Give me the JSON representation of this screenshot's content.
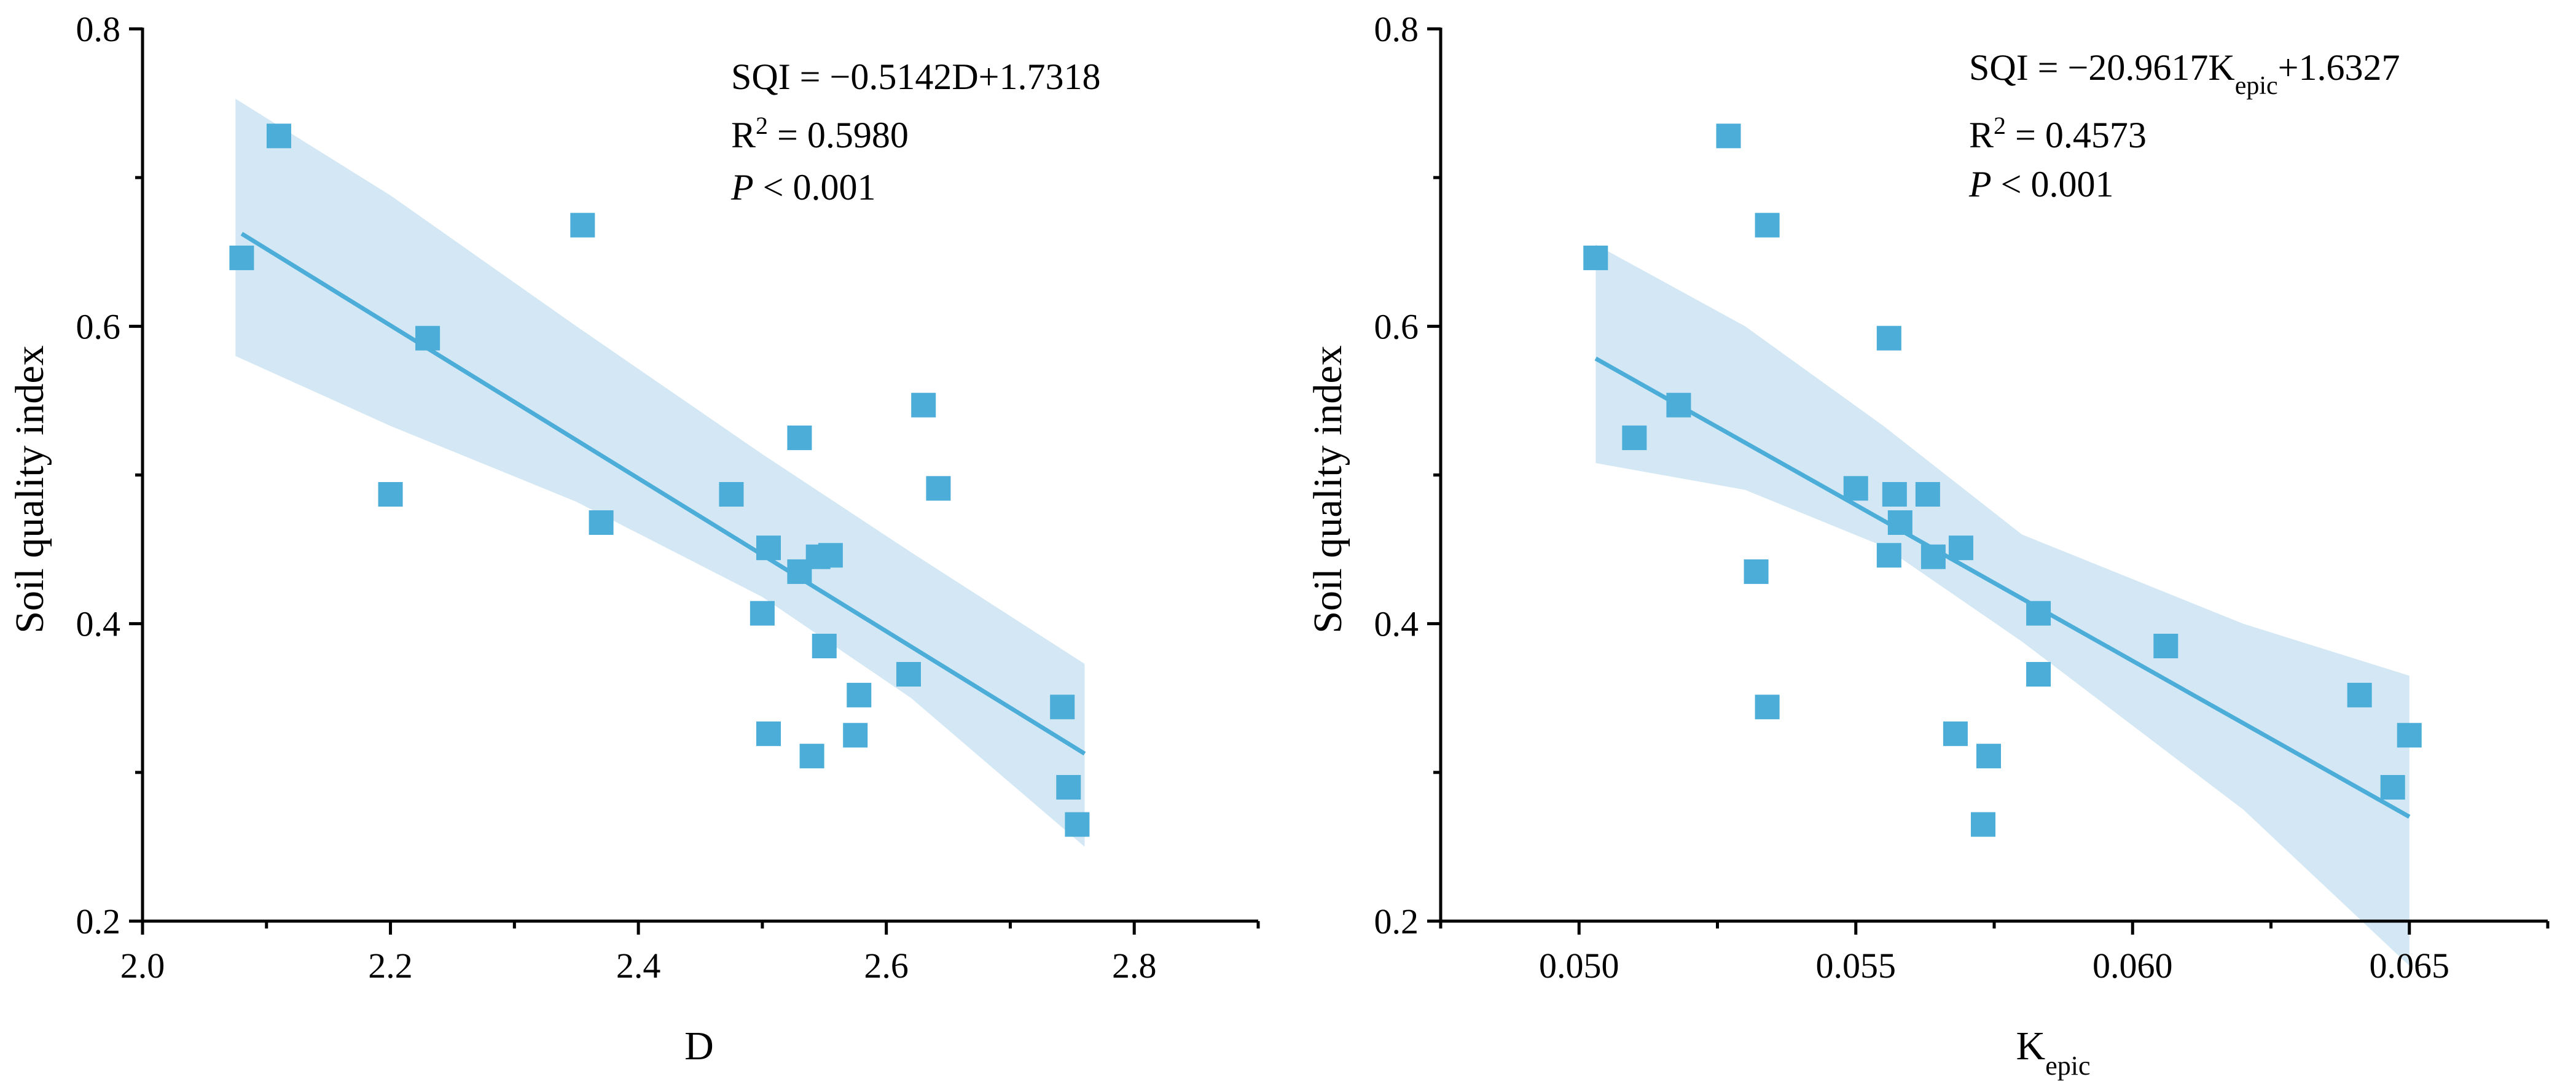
{
  "chart_data": [
    {
      "type": "scatter",
      "id": "left",
      "xlabel": "D",
      "ylabel": "Soil quality index",
      "xlim": [
        2.0,
        2.9
      ],
      "ylim": [
        0.2,
        0.8
      ],
      "xticks": [
        2.0,
        2.2,
        2.4,
        2.6,
        2.8
      ],
      "xtick_labels": [
        "2.0",
        "2.2",
        "2.4",
        "2.6",
        "2.8"
      ],
      "xminor": [
        2.1,
        2.3,
        2.5,
        2.7,
        2.9
      ],
      "yticks": [
        0.2,
        0.4,
        0.6,
        0.8
      ],
      "ytick_labels": [
        "0.2",
        "0.4",
        "0.6",
        "0.8"
      ],
      "yminor": [
        0.3,
        0.5,
        0.7
      ],
      "colors": {
        "marker": "#4badd8",
        "line": "#4badd8",
        "band": "#d3e8f4"
      },
      "annotation": {
        "equation": "SQI = −0.5142D+1.7318",
        "r2_prefix": "R",
        "r2_sup": "2",
        "r2_value": " = 0.5980",
        "p_symbol": "P",
        "p_value": " < 0.001"
      },
      "fit": {
        "slope": -0.5142,
        "intercept": 1.7318,
        "x_range": [
          2.08,
          2.76
        ]
      },
      "ci_upper": [
        [
          2.075,
          0.753
        ],
        [
          2.2,
          0.688
        ],
        [
          2.35,
          0.6
        ],
        [
          2.5,
          0.514
        ],
        [
          2.62,
          0.448
        ],
        [
          2.76,
          0.373
        ]
      ],
      "ci_lower": [
        [
          2.075,
          0.58
        ],
        [
          2.2,
          0.533
        ],
        [
          2.35,
          0.482
        ],
        [
          2.5,
          0.418
        ],
        [
          2.62,
          0.35
        ],
        [
          2.76,
          0.25
        ]
      ],
      "points": [
        {
          "x": 2.08,
          "y": 0.646
        },
        {
          "x": 2.11,
          "y": 0.728
        },
        {
          "x": 2.2,
          "y": 0.487
        },
        {
          "x": 2.23,
          "y": 0.592
        },
        {
          "x": 2.355,
          "y": 0.668
        },
        {
          "x": 2.37,
          "y": 0.468
        },
        {
          "x": 2.475,
          "y": 0.487
        },
        {
          "x": 2.5,
          "y": 0.407
        },
        {
          "x": 2.505,
          "y": 0.451
        },
        {
          "x": 2.505,
          "y": 0.326
        },
        {
          "x": 2.53,
          "y": 0.435
        },
        {
          "x": 2.53,
          "y": 0.525
        },
        {
          "x": 2.54,
          "y": 0.311
        },
        {
          "x": 2.545,
          "y": 0.445
        },
        {
          "x": 2.55,
          "y": 0.385
        },
        {
          "x": 2.555,
          "y": 0.446
        },
        {
          "x": 2.575,
          "y": 0.325
        },
        {
          "x": 2.578,
          "y": 0.352
        },
        {
          "x": 2.618,
          "y": 0.366
        },
        {
          "x": 2.63,
          "y": 0.547
        },
        {
          "x": 2.642,
          "y": 0.491
        },
        {
          "x": 2.742,
          "y": 0.344
        },
        {
          "x": 2.747,
          "y": 0.29
        },
        {
          "x": 2.754,
          "y": 0.265
        }
      ]
    },
    {
      "type": "scatter",
      "id": "right",
      "xlabel": "K",
      "xlabel_sub": "epic",
      "ylabel": "Soil quality index",
      "xlim": [
        0.0475,
        0.0675
      ],
      "ylim": [
        0.2,
        0.8
      ],
      "xticks": [
        0.05,
        0.055,
        0.06,
        0.065
      ],
      "xtick_labels": [
        "0.050",
        "0.055",
        "0.060",
        "0.065"
      ],
      "xminor": [
        0.0475,
        0.0525,
        0.0575,
        0.0625,
        0.0675
      ],
      "yticks": [
        0.2,
        0.4,
        0.6,
        0.8
      ],
      "ytick_labels": [
        "0.2",
        "0.4",
        "0.6",
        "0.8"
      ],
      "yminor": [
        0.3,
        0.5,
        0.7
      ],
      "colors": {
        "marker": "#4badd8",
        "line": "#4badd8",
        "band": "#d3e8f4"
      },
      "annotation": {
        "eq_prefix": "SQI = −20.9617K",
        "eq_sub": "epic",
        "eq_suffix": "+1.6327",
        "r2_prefix": "R",
        "r2_sup": "2",
        "r2_value": " = 0.4573",
        "p_symbol": "P",
        "p_value": " < 0.001"
      },
      "fit": {
        "slope": -20.9617,
        "intercept": 1.6327,
        "x_range": [
          0.0503,
          0.065
        ]
      },
      "ci_upper": [
        [
          0.0503,
          0.655
        ],
        [
          0.053,
          0.6
        ],
        [
          0.0555,
          0.533
        ],
        [
          0.058,
          0.46
        ],
        [
          0.062,
          0.4
        ],
        [
          0.065,
          0.365
        ]
      ],
      "ci_lower": [
        [
          0.0503,
          0.508
        ],
        [
          0.053,
          0.49
        ],
        [
          0.0555,
          0.452
        ],
        [
          0.058,
          0.388
        ],
        [
          0.062,
          0.275
        ],
        [
          0.065,
          0.17
        ]
      ],
      "points": [
        {
          "x": 0.0503,
          "y": 0.646
        },
        {
          "x": 0.051,
          "y": 0.525
        },
        {
          "x": 0.0518,
          "y": 0.547
        },
        {
          "x": 0.0527,
          "y": 0.728
        },
        {
          "x": 0.0532,
          "y": 0.435
        },
        {
          "x": 0.0534,
          "y": 0.668
        },
        {
          "x": 0.0534,
          "y": 0.344
        },
        {
          "x": 0.055,
          "y": 0.491
        },
        {
          "x": 0.0556,
          "y": 0.446
        },
        {
          "x": 0.0556,
          "y": 0.592
        },
        {
          "x": 0.0557,
          "y": 0.487
        },
        {
          "x": 0.0558,
          "y": 0.468
        },
        {
          "x": 0.0563,
          "y": 0.487
        },
        {
          "x": 0.0564,
          "y": 0.445
        },
        {
          "x": 0.0568,
          "y": 0.326
        },
        {
          "x": 0.0569,
          "y": 0.451
        },
        {
          "x": 0.0573,
          "y": 0.265
        },
        {
          "x": 0.0574,
          "y": 0.311
        },
        {
          "x": 0.0583,
          "y": 0.407
        },
        {
          "x": 0.0583,
          "y": 0.366
        },
        {
          "x": 0.0606,
          "y": 0.385
        },
        {
          "x": 0.0641,
          "y": 0.352
        },
        {
          "x": 0.0647,
          "y": 0.29
        },
        {
          "x": 0.065,
          "y": 0.325
        }
      ]
    }
  ]
}
